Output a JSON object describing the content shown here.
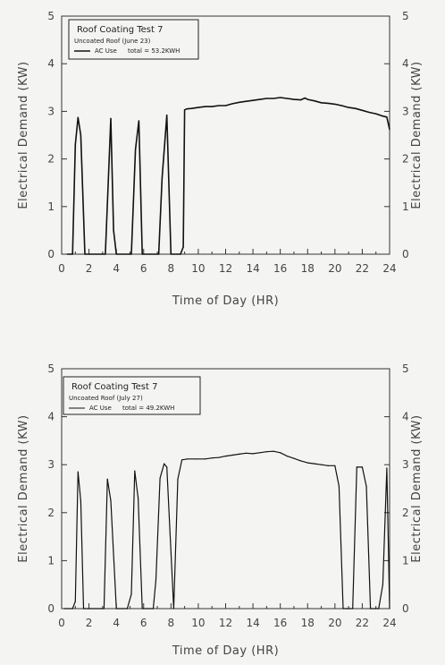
{
  "chart_data": [
    {
      "type": "line",
      "legend": {
        "title": "Roof Coating Test 7",
        "subtitle": "Uncoated Roof (June 23)",
        "series_label": "AC Use",
        "total": "total = 53.2KWH",
        "placement": "top-left"
      },
      "xlabel": "Time of Day (HR)",
      "ylabel": "Electrical Demand (KW)",
      "xlim": [
        0,
        24
      ],
      "ylim": [
        0,
        5
      ],
      "xticks": [
        0,
        2,
        4,
        6,
        8,
        10,
        12,
        14,
        16,
        18,
        20,
        22,
        24
      ],
      "yticks": [
        0,
        1,
        2,
        3,
        4,
        5
      ],
      "series": [
        {
          "line_style": "thick",
          "x": [
            0.4,
            0.6,
            0.8,
            1.0,
            1.2,
            1.4,
            1.7,
            2.0,
            3.2,
            3.6,
            3.8,
            4.0,
            5.1,
            5.4,
            5.65,
            5.9,
            7.1,
            7.35,
            7.7,
            8.0,
            8.4,
            8.7,
            8.9,
            9.0,
            9.15,
            9.5,
            10.0,
            10.5,
            11.0,
            11.5,
            12.0,
            12.5,
            13.0,
            13.5,
            14.0,
            14.5,
            15.0,
            15.5,
            16.0,
            16.5,
            17.0,
            17.5,
            17.8,
            18.0,
            18.5,
            19.0,
            19.5,
            20.0,
            20.5,
            21.0,
            21.5,
            22.0,
            22.5,
            23.0,
            23.5,
            23.8,
            24.0
          ],
          "values": [
            0.0,
            0.0,
            0.0,
            2.3,
            2.87,
            2.5,
            0.0,
            0.0,
            0.0,
            2.85,
            0.5,
            0.0,
            0.0,
            2.2,
            2.8,
            0.0,
            0.0,
            1.6,
            2.92,
            0.0,
            0.0,
            0.0,
            0.15,
            3.03,
            3.05,
            3.06,
            3.08,
            3.1,
            3.1,
            3.12,
            3.12,
            3.16,
            3.19,
            3.21,
            3.23,
            3.25,
            3.27,
            3.27,
            3.29,
            3.27,
            3.25,
            3.24,
            3.28,
            3.25,
            3.22,
            3.18,
            3.17,
            3.15,
            3.12,
            3.08,
            3.06,
            3.02,
            2.98,
            2.95,
            2.9,
            2.88,
            2.62
          ]
        }
      ]
    },
    {
      "type": "line",
      "legend": {
        "title": "Roof Coating Test 7",
        "subtitle": "Uncoated Roof (July 27)",
        "series_label": "AC Use",
        "total": "total = 49.2KWH",
        "placement": "top-left"
      },
      "xlabel": "Time of Day (HR)",
      "ylabel": "Electrical Demand (KW)",
      "xlim": [
        0,
        24
      ],
      "ylim": [
        0,
        5
      ],
      "xticks": [
        0,
        2,
        4,
        6,
        8,
        10,
        12,
        14,
        16,
        18,
        20,
        22,
        24
      ],
      "yticks": [
        0,
        1,
        2,
        3,
        4,
        5
      ],
      "series": [
        {
          "line_style": "thin",
          "x": [
            0.2,
            0.8,
            1.0,
            1.2,
            1.4,
            1.6,
            2.0,
            2.9,
            3.1,
            3.35,
            3.6,
            4.0,
            4.8,
            5.1,
            5.35,
            5.6,
            5.9,
            6.7,
            6.9,
            7.2,
            7.5,
            7.7,
            8.2,
            8.5,
            8.8,
            9.2,
            9.8,
            10.5,
            11.0,
            11.5,
            12.0,
            12.5,
            13.0,
            13.5,
            14.0,
            14.5,
            15.0,
            15.5,
            16.0,
            16.5,
            17.0,
            17.5,
            18.0,
            18.5,
            19.0,
            19.5,
            20.0,
            20.3,
            20.6,
            20.9,
            21.3,
            21.6,
            22.0,
            22.3,
            22.6,
            22.9,
            23.2,
            23.5,
            23.8,
            24.0
          ],
          "values": [
            0.0,
            0.0,
            0.15,
            2.85,
            2.25,
            0.0,
            0.0,
            0.0,
            0.0,
            2.7,
            2.25,
            0.0,
            0.0,
            0.3,
            2.87,
            2.3,
            0.0,
            0.0,
            0.6,
            2.72,
            3.02,
            2.95,
            0.0,
            2.7,
            3.1,
            3.12,
            3.12,
            3.12,
            3.14,
            3.15,
            3.18,
            3.2,
            3.22,
            3.24,
            3.23,
            3.25,
            3.27,
            3.28,
            3.25,
            3.18,
            3.13,
            3.08,
            3.04,
            3.02,
            3.0,
            2.98,
            2.98,
            2.55,
            0.0,
            0.0,
            0.0,
            2.95,
            2.95,
            2.55,
            0.0,
            0.0,
            0.0,
            0.5,
            2.93,
            0.0
          ]
        }
      ]
    }
  ]
}
